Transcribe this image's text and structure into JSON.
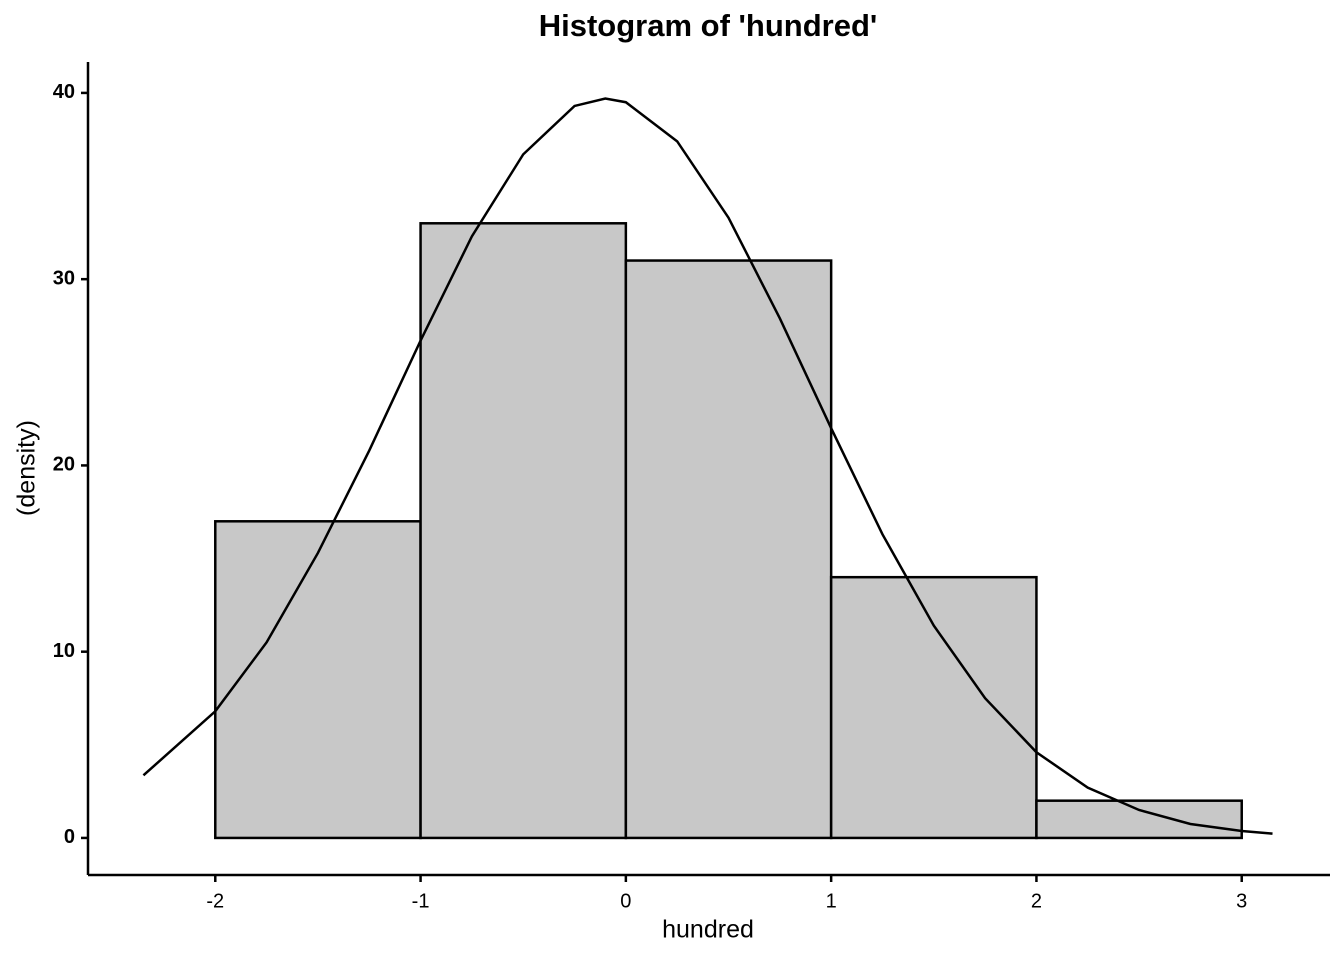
{
  "chart_data": {
    "type": "histogram",
    "title": "Histogram of 'hundred'",
    "xlabel": "hundred",
    "ylabel": "(density)",
    "bins": [
      -2,
      -1,
      0,
      1,
      2,
      3
    ],
    "counts": [
      17,
      33,
      31,
      14,
      2
    ],
    "color": "#c8c8c8",
    "edgecolor": "#000000",
    "density_curve": {
      "color": "#000000",
      "x": [
        -2.35,
        -2,
        -1.75,
        -1.5,
        -1.25,
        -1,
        -0.75,
        -0.5,
        -0.25,
        -0.1,
        0,
        0.25,
        0.5,
        0.75,
        1,
        1.25,
        1.5,
        1.75,
        2,
        2.25,
        2.5,
        2.75,
        3,
        3.15
      ],
      "values": [
        3.36,
        6.8,
        10.5,
        15.3,
        20.8,
        26.7,
        32.3,
        36.7,
        39.3,
        39.7,
        39.5,
        37.4,
        33.3,
        27.9,
        22.0,
        16.3,
        11.4,
        7.5,
        4.6,
        2.7,
        1.5,
        0.75,
        0.37,
        0.23
      ]
    },
    "xlim": [
      -2.62,
      3.43
    ],
    "ylim": [
      -1.99,
      41.66
    ],
    "xticks": [
      -2,
      -1,
      0,
      1,
      2,
      3
    ],
    "yticks": [
      0,
      10,
      20,
      30,
      40
    ],
    "grid": false
  }
}
